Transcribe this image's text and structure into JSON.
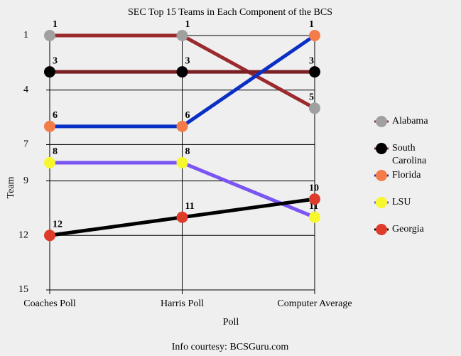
{
  "chart_data": {
    "type": "line",
    "title": "SEC Top 15 Teams in Each Component of the BCS",
    "x_label": "Poll",
    "y_label": "Team",
    "note": "Info courtesy: BCSGuru.com",
    "categories": [
      "Coaches Poll",
      "Harris Poll",
      "Computer Average"
    ],
    "series": [
      {
        "name": "Alabama",
        "color": "#a0a0a0",
        "line_color": "#9b2a2f",
        "values": [
          1,
          1,
          5
        ]
      },
      {
        "name": "South Carolina",
        "color": "#000000",
        "line_color": "#7a1f24",
        "values": [
          3,
          3,
          3
        ]
      },
      {
        "name": "Florida",
        "color": "#f47c48",
        "line_color": "#0a2fc4",
        "values": [
          6,
          6,
          1
        ]
      },
      {
        "name": "LSU",
        "color": "#f7f72e",
        "line_color": "#7a55f2",
        "values": [
          8,
          8,
          11
        ]
      },
      {
        "name": "Georgia",
        "color": "#de3b2a",
        "line_color": "#000000",
        "values": [
          12,
          11,
          10
        ]
      }
    ],
    "ylim": [
      15,
      1
    ],
    "yticks": [
      1,
      4,
      7,
      9,
      12,
      15
    ],
    "grid": true
  }
}
